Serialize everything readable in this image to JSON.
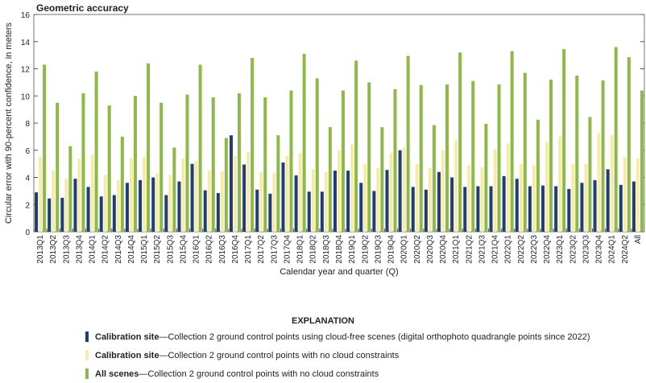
{
  "chart_data": {
    "type": "bar",
    "title": "Geometric accuracy",
    "y_label": "Circular error with 90-percent confidence, in meters",
    "x_label": "Calendar year and quarter (Q)",
    "legend_title": "EXPLANATION",
    "categories": [
      "2013Q1",
      "2013Q2",
      "2013Q3",
      "2013Q4",
      "2014Q1",
      "2014Q2",
      "2014Q3",
      "2014Q4",
      "2015Q1",
      "2015Q2",
      "2015Q3",
      "2015Q4",
      "2016Q1",
      "2016Q2",
      "2016Q3",
      "2016Q4",
      "2017Q1",
      "2017Q2",
      "2017Q3",
      "2017Q4",
      "2018Q1",
      "2018Q2",
      "2018Q3",
      "2018Q4",
      "2019Q1",
      "2019Q2",
      "2019Q3",
      "2019Q4",
      "2020Q1",
      "2020Q2",
      "2020Q3",
      "2020Q4",
      "2021Q1",
      "2021Q2",
      "2021Q3",
      "2021Q4",
      "2022Q1",
      "2022Q2",
      "2022Q3",
      "2022Q4",
      "2023Q1",
      "2023Q2",
      "2023Q3",
      "2023Q4",
      "2024Q1",
      "2024Q2",
      "All"
    ],
    "series": [
      {
        "name": "Calibration site",
        "description": "—Collection 2 ground control points using cloud-free scenes (digital orthophoto quadrangle points since 2022)",
        "color": "#1f3f73",
        "values": [
          2.9,
          2.45,
          2.5,
          3.9,
          3.3,
          2.6,
          2.7,
          3.6,
          3.8,
          4.0,
          2.7,
          3.7,
          5.0,
          3.05,
          2.85,
          7.1,
          4.95,
          3.1,
          2.8,
          5.1,
          4.15,
          2.95,
          2.95,
          4.5,
          4.5,
          3.6,
          3.0,
          4.55,
          6.0,
          3.3,
          3.1,
          4.4,
          4.0,
          3.3,
          3.35,
          3.35,
          4.1,
          3.9,
          3.35,
          3.4,
          3.35,
          3.15,
          3.6,
          3.8,
          4.6,
          3.45,
          3.7
        ]
      },
      {
        "name": "Calibration site",
        "description": "—Collection 2 ground control points with no cloud constraints",
        "color": "#f7eba8",
        "values": [
          5.5,
          4.5,
          3.9,
          5.4,
          5.7,
          4.2,
          3.8,
          5.4,
          5.5,
          4.3,
          4.2,
          5.4,
          5.2,
          4.5,
          4.45,
          5.6,
          5.9,
          4.4,
          4.35,
          5.6,
          5.8,
          4.6,
          4.4,
          6.0,
          6.4,
          5.0,
          4.7,
          5.8,
          6.2,
          5.0,
          4.7,
          6.0,
          6.7,
          4.9,
          4.75,
          6.1,
          6.5,
          5.0,
          4.9,
          6.6,
          7.0,
          5.0,
          5.0,
          7.3,
          7.1,
          5.5,
          5.4
        ]
      },
      {
        "name": "All scenes",
        "description": "—Collection 2 ground control points with no cloud constraints",
        "color": "#8db84a",
        "values": [
          12.3,
          9.5,
          6.3,
          10.2,
          11.8,
          9.3,
          7.0,
          10.0,
          12.4,
          9.5,
          6.2,
          10.1,
          12.3,
          9.9,
          6.9,
          10.2,
          12.8,
          9.9,
          7.1,
          10.4,
          13.1,
          11.3,
          7.7,
          10.4,
          12.6,
          11.0,
          7.7,
          10.5,
          12.95,
          10.8,
          7.85,
          10.85,
          13.2,
          11.1,
          7.95,
          10.85,
          13.3,
          11.7,
          8.25,
          11.2,
          13.45,
          11.5,
          8.45,
          11.15,
          13.6,
          12.85,
          10.4
        ]
      }
    ],
    "ylim": [
      0,
      16
    ],
    "yticks": [
      0,
      2,
      4,
      6,
      8,
      10,
      12,
      14,
      16
    ]
  }
}
